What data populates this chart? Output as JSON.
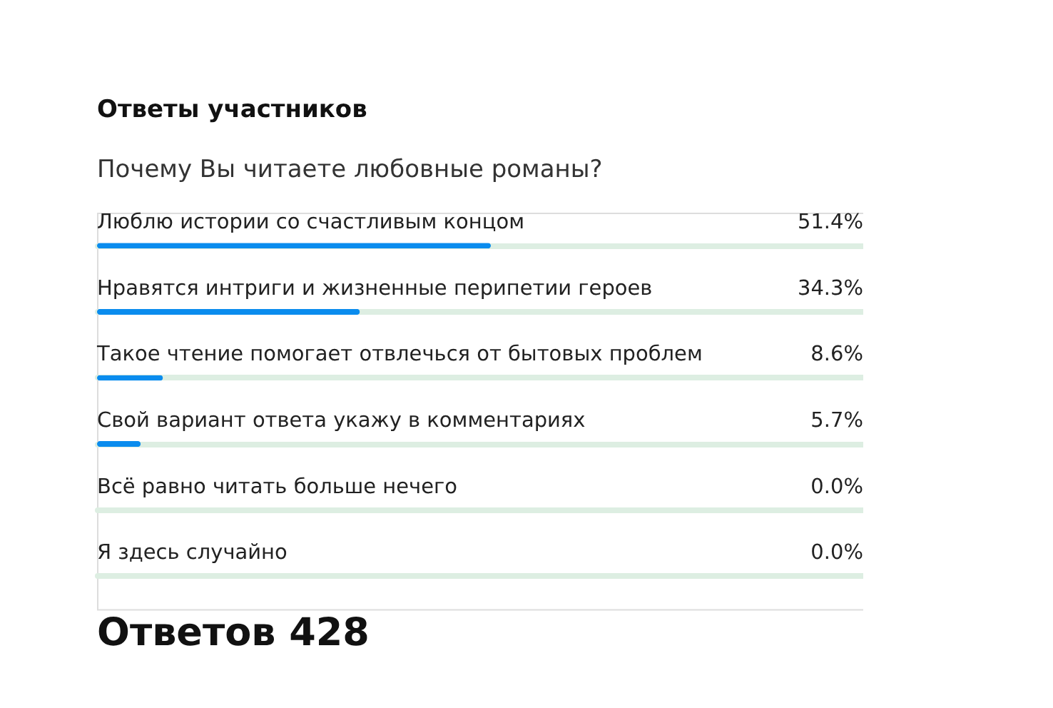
{
  "chart_data": {
    "type": "bar",
    "orientation": "horizontal",
    "title": "Ответы участников",
    "subtitle": "Почему Вы читаете любовные романы?",
    "categories": [
      "Люблю истории со счастливым концом",
      "Нравятся интриги и жизненные перипетии героев",
      "Такое чтение помогает отвлечься от бытовых проблем",
      "Свой вариант ответа укажу в комментариях",
      "Всё равно читать больше нечего",
      "Я здесь случайно"
    ],
    "values": [
      51.4,
      34.3,
      8.6,
      5.7,
      0.0,
      0.0
    ],
    "value_labels": [
      "51.4%",
      "34.3%",
      "8.6%",
      "5.7%",
      "0.0%",
      "0.0%"
    ],
    "color": "#0a8cee",
    "xlim": [
      0,
      100
    ],
    "grid": "y",
    "tick_labels": "y",
    "annotations": [
      "Ответов 428"
    ]
  }
}
